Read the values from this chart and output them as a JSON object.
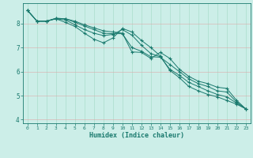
{
  "xlabel": "Humidex (Indice chaleur)",
  "ylabel": "",
  "background_color": "#cceee8",
  "grid_color": "#aaddcc",
  "line_color": "#1a7a6e",
  "x_values": [
    0,
    1,
    2,
    3,
    4,
    5,
    6,
    7,
    8,
    9,
    10,
    11,
    12,
    13,
    14,
    15,
    16,
    17,
    18,
    19,
    20,
    21,
    22,
    23
  ],
  "line1": [
    8.55,
    8.1,
    8.1,
    8.22,
    8.2,
    8.1,
    7.95,
    7.82,
    7.7,
    7.65,
    7.6,
    6.82,
    6.8,
    6.55,
    6.8,
    6.55,
    6.1,
    5.8,
    5.6,
    5.5,
    5.35,
    5.3,
    4.82,
    4.45
  ],
  "line2": [
    8.55,
    8.1,
    8.1,
    8.22,
    8.2,
    8.05,
    7.9,
    7.75,
    7.6,
    7.58,
    7.58,
    7.0,
    6.85,
    6.62,
    6.6,
    6.3,
    6.0,
    5.7,
    5.5,
    5.38,
    5.2,
    5.15,
    4.75,
    4.45
  ],
  "line3": [
    8.55,
    8.1,
    8.1,
    8.2,
    8.15,
    7.95,
    7.75,
    7.6,
    7.5,
    7.55,
    7.75,
    7.52,
    7.1,
    6.75,
    6.62,
    6.1,
    5.85,
    5.55,
    5.38,
    5.2,
    5.05,
    4.95,
    4.7,
    4.45
  ],
  "line4": [
    8.55,
    8.1,
    8.1,
    8.2,
    8.05,
    7.88,
    7.6,
    7.35,
    7.2,
    7.4,
    7.8,
    7.65,
    7.3,
    7.0,
    6.65,
    6.05,
    5.75,
    5.38,
    5.2,
    5.05,
    4.95,
    4.8,
    4.65,
    4.45
  ],
  "ylim": [
    3.85,
    8.85
  ],
  "xlim": [
    -0.5,
    23.5
  ],
  "yticks": [
    4,
    5,
    6,
    7,
    8
  ],
  "xticks": [
    0,
    1,
    2,
    3,
    4,
    5,
    6,
    7,
    8,
    9,
    10,
    11,
    12,
    13,
    14,
    15,
    16,
    17,
    18,
    19,
    20,
    21,
    22,
    23
  ]
}
